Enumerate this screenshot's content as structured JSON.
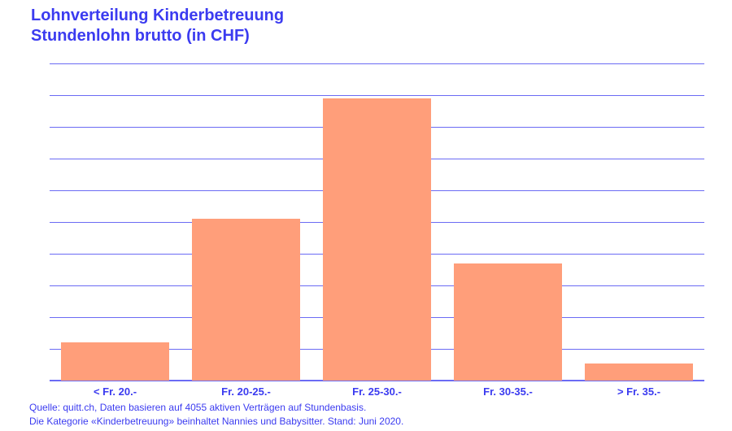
{
  "title": {
    "line1": "Lohnverteilung Kinderbetreuung",
    "line2": "Stundenlohn brutto (in CHF)"
  },
  "footnote": {
    "line1": "Quelle: quitt.ch, Daten basieren auf 4055 aktiven Verträgen auf Stundenbasis.",
    "line2": "Die Kategorie «Kinderbetreuung» beinhaltet Nannies und Babysitter. Stand: Juni 2020."
  },
  "colors": {
    "bar": "#ff9e7a",
    "text": "#3b3bf0",
    "grid": "#6b6bf4"
  },
  "chart_data": {
    "type": "bar",
    "title": "Lohnverteilung Kinderbetreuung – Stundenlohn brutto (in CHF)",
    "xlabel": "",
    "ylabel": "",
    "categories": [
      "< Fr. 20.-",
      "Fr. 20-25.-",
      "Fr. 25-30.-",
      "Fr. 30-35.-",
      "> Fr. 35.-"
    ],
    "values": [
      6,
      25.5,
      44.5,
      18.5,
      2.7
    ],
    "value_unit_note": "No y-axis tick labels shown; values estimated as share of contracts (%) assuming each gridline interval = 5%",
    "ylim": [
      0,
      50
    ],
    "grid": true,
    "gridline_count": 11,
    "legend": null
  }
}
